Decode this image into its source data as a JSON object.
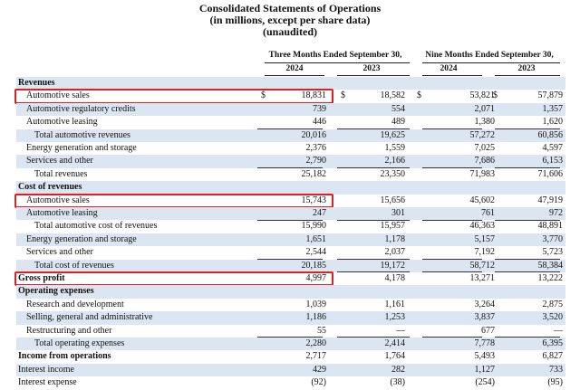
{
  "title": {
    "line1": "Consolidated Statements of Operations",
    "line2": "(in millions, except per share data)",
    "line3": "(unaudited)"
  },
  "headers": {
    "three_months": "Three Months Ended September 30,",
    "nine_months": "Nine Months Ended September 30,",
    "years": [
      "2024",
      "2023",
      "2024",
      "2023"
    ]
  },
  "currency_symbol": "$",
  "rows": [
    {
      "label": "Revenues",
      "type": "section",
      "shade": true
    },
    {
      "label": "Automotive sales",
      "values": [
        "18,831",
        "18,582",
        "53,821",
        "57,879"
      ],
      "currency": true,
      "indent": 1,
      "highlight": true
    },
    {
      "label": "Automotive regulatory credits",
      "values": [
        "739",
        "554",
        "2,071",
        "1,357"
      ],
      "indent": 1,
      "shade": true
    },
    {
      "label": "Automotive leasing",
      "values": [
        "446",
        "489",
        "1,380",
        "1,620"
      ],
      "indent": 1,
      "underline": true
    },
    {
      "label": "Total automotive revenues",
      "values": [
        "20,016",
        "19,625",
        "57,272",
        "60,856"
      ],
      "indent": 2,
      "shade": true
    },
    {
      "label": "Energy generation and storage",
      "values": [
        "2,376",
        "1,559",
        "7,025",
        "4,597"
      ],
      "indent": 1
    },
    {
      "label": "Services and other",
      "values": [
        "2,790",
        "2,166",
        "7,686",
        "6,153"
      ],
      "indent": 1,
      "shade": true,
      "underline": true
    },
    {
      "label": "Total revenues",
      "values": [
        "25,182",
        "23,350",
        "71,983",
        "71,606"
      ],
      "indent": 2
    },
    {
      "label": "Cost of revenues",
      "type": "section",
      "shade": true
    },
    {
      "label": "Automotive sales",
      "values": [
        "15,743",
        "15,656",
        "45,602",
        "47,919"
      ],
      "indent": 1,
      "highlight": true
    },
    {
      "label": "Automotive leasing",
      "values": [
        "247",
        "301",
        "761",
        "972"
      ],
      "indent": 1,
      "shade": true,
      "underline": true
    },
    {
      "label": "Total automotive cost of revenues",
      "values": [
        "15,990",
        "15,957",
        "46,363",
        "48,891"
      ],
      "indent": 2
    },
    {
      "label": "Energy generation and storage",
      "values": [
        "1,651",
        "1,178",
        "5,157",
        "3,770"
      ],
      "indent": 1,
      "shade": true
    },
    {
      "label": "Services and other",
      "values": [
        "2,544",
        "2,037",
        "7,192",
        "5,723"
      ],
      "indent": 1,
      "underline": true
    },
    {
      "label": "Total cost of revenues",
      "values": [
        "20,185",
        "19,172",
        "58,712",
        "58,384"
      ],
      "indent": 2,
      "shade": true,
      "underline": true
    },
    {
      "label": "Gross profit",
      "values": [
        "4,997",
        "4,178",
        "13,271",
        "13,222"
      ],
      "bold": true,
      "highlight": true
    },
    {
      "label": "Operating expenses",
      "type": "section",
      "shade": true
    },
    {
      "label": "Research and development",
      "values": [
        "1,039",
        "1,161",
        "3,264",
        "2,875"
      ],
      "indent": 1
    },
    {
      "label": "Selling, general and administrative",
      "values": [
        "1,186",
        "1,253",
        "3,837",
        "3,520"
      ],
      "indent": 1,
      "shade": true
    },
    {
      "label": "Restructuring and other",
      "values": [
        "55",
        "—",
        "677",
        "—"
      ],
      "indent": 1,
      "underline": true
    },
    {
      "label": "Total operating expenses",
      "values": [
        "2,280",
        "2,414",
        "7,778",
        "6,395"
      ],
      "indent": 2,
      "shade": true
    },
    {
      "label": "Income from operations",
      "values": [
        "2,717",
        "1,764",
        "5,493",
        "6,827"
      ],
      "bold": true
    },
    {
      "label": "Interest income",
      "values": [
        "429",
        "282",
        "1,127",
        "733"
      ],
      "shade": true
    },
    {
      "label": "Interest expense",
      "values": [
        "(92)",
        "(38)",
        "(254)",
        "(95)"
      ]
    }
  ]
}
